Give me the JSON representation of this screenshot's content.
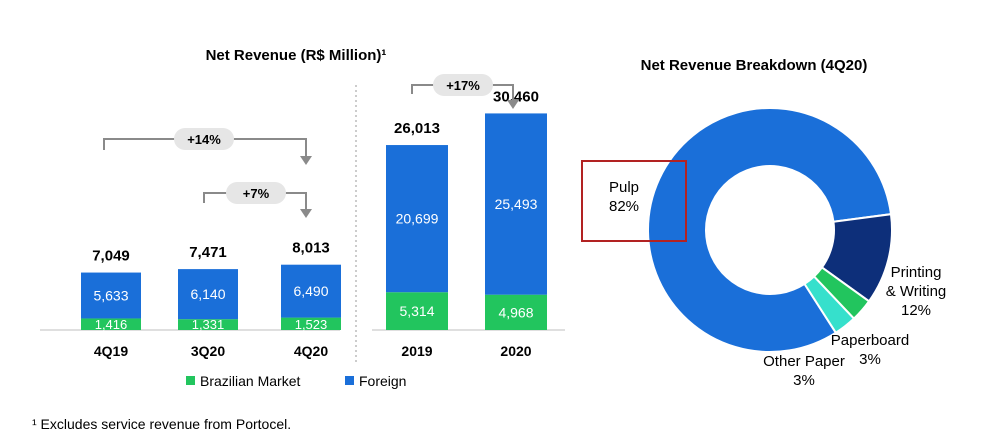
{
  "chart_data": [
    {
      "type": "bar",
      "stacked": true,
      "title": "Net Revenue (R$ Million)¹",
      "categories": [
        "4Q19",
        "3Q20",
        "4Q20",
        "2019",
        "2020"
      ],
      "series": [
        {
          "name": "Brazilian Market",
          "color": "#22c55e",
          "values": [
            1416,
            1331,
            1523,
            5314,
            4968
          ]
        },
        {
          "name": "Foreign",
          "color": "#1a6fd9",
          "values": [
            5633,
            6140,
            6490,
            20699,
            25493
          ]
        }
      ],
      "totals": [
        "7,049",
        "7,471",
        "8,013",
        "26,013",
        "30,460"
      ],
      "value_labels": {
        "Brazilian Market": [
          "1,416",
          "1,331",
          "1,523",
          "5,314",
          "4,968"
        ],
        "Foreign": [
          "5,633",
          "6,140",
          "6,490",
          "20,699",
          "25,493"
        ]
      },
      "annotations": [
        {
          "label": "+14%",
          "from": "4Q19",
          "to": "4Q20"
        },
        {
          "label": "+7%",
          "from": "3Q20",
          "to": "4Q20"
        },
        {
          "label": "+17%",
          "from": "2019",
          "to": "2020"
        }
      ],
      "legend_position": "bottom"
    },
    {
      "type": "pie",
      "donut": true,
      "title": "Net Revenue Breakdown (4Q20)",
      "slices": [
        {
          "name": "Pulp",
          "value": 82,
          "label": [
            "Pulp",
            "82%"
          ],
          "color": "#1a6fd9"
        },
        {
          "name": "Printing & Writing",
          "value": 12,
          "label": [
            "Printing",
            "& Writing",
            "12%"
          ],
          "color": "#0d2f7a"
        },
        {
          "name": "Paperboard",
          "value": 3,
          "label": [
            "Paperboard",
            "3%"
          ],
          "color": "#22c55e"
        },
        {
          "name": "Other Paper",
          "value": 3,
          "label": [
            "Other Paper",
            "3%"
          ],
          "color": "#36e0cc"
        }
      ],
      "highlight": "Pulp"
    }
  ],
  "footnote": "¹ Excludes service revenue from Portocel."
}
